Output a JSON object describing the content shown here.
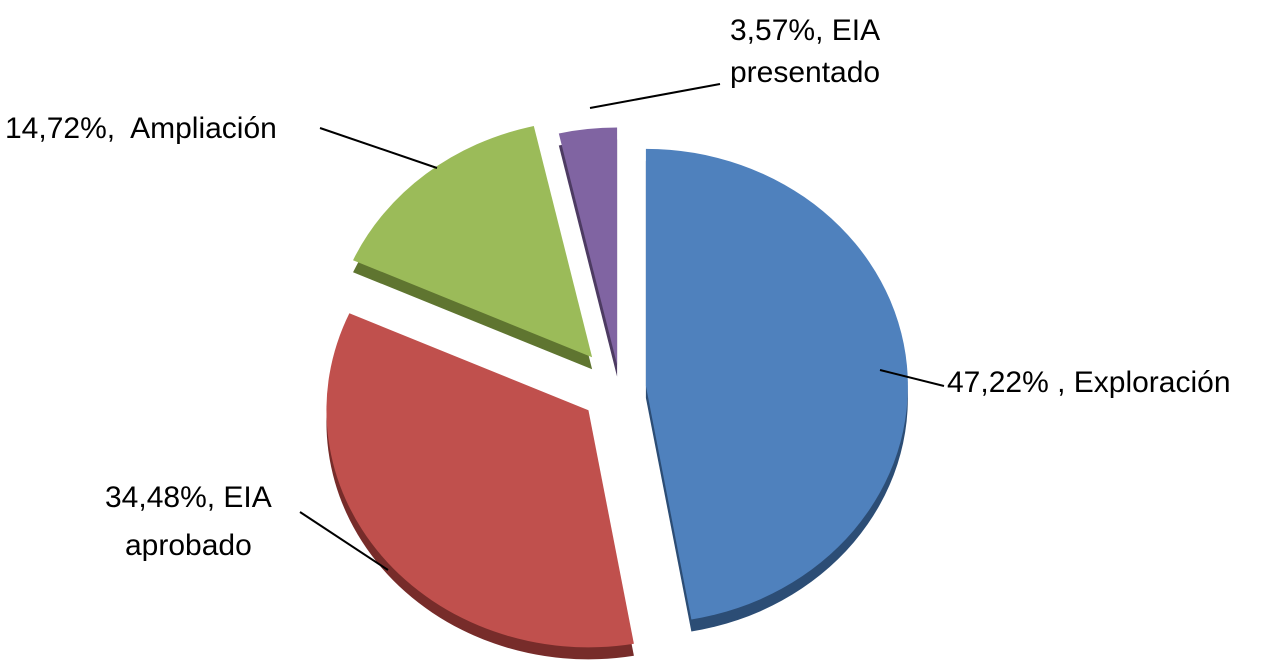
{
  "chart_data": {
    "type": "pie",
    "title": "",
    "slices": [
      {
        "name": "Exploración",
        "value": 47.22,
        "label_lines": [
          "47,22% , Exploración"
        ],
        "color": "#4F81BD",
        "side_color": "#2C4D75"
      },
      {
        "name": "EIA aprobado",
        "value": 34.48,
        "label_lines": [
          "34,48%, EIA",
          "aprobado"
        ],
        "color": "#C0504D",
        "side_color": "#772C2A"
      },
      {
        "name": "Ampliación",
        "value": 14.72,
        "label_lines": [
          "14,72%,  Ampliación"
        ],
        "color": "#9BBB59",
        "side_color": "#5F7530"
      },
      {
        "name": "EIA presentado",
        "value": 3.57,
        "label_lines": [
          "3,57%, EIA",
          "presentado"
        ],
        "color": "#8064A2",
        "side_color": "#4D3B62"
      }
    ],
    "start_angle": "12 o'clock",
    "direction": "clockwise",
    "exploded": true,
    "style": "3d",
    "legend": "none",
    "data_labels": "outside with leader lines"
  }
}
